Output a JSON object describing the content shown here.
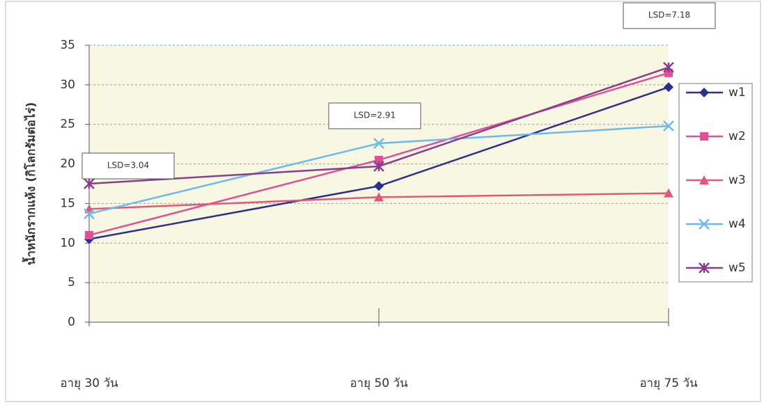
{
  "chart_data": {
    "type": "line",
    "y_label": "น้ำหนักรากแห้ง (กิโลกรัมต่อไร่)",
    "categories": [
      "อายุ 30 วัน",
      "อายุ 50 วัน",
      "อายุ 75 วัน"
    ],
    "series": [
      {
        "name": "w1",
        "color": "#2b2f8f",
        "marker": "diamond",
        "values": [
          10.5,
          17.2,
          29.7
        ]
      },
      {
        "name": "w2",
        "color": "#e0509a",
        "marker": "square",
        "values": [
          11,
          20.5,
          31.5
        ]
      },
      {
        "name": "w3",
        "color": "#e05a78",
        "marker": "triangle",
        "values": [
          14.3,
          15.8,
          16.3
        ]
      },
      {
        "name": "w4",
        "color": "#6fb8ef",
        "marker": "x",
        "values": [
          13.7,
          22.6,
          24.8
        ]
      },
      {
        "name": "w5",
        "color": "#8a3c8c",
        "marker": "star",
        "values": [
          17.5,
          19.7,
          32.2
        ]
      }
    ],
    "annotations": [
      "LSD=3.04",
      "LSD=2.91",
      "LSD=7.18"
    ],
    "ylim": [
      0,
      35
    ],
    "yticks": [
      0,
      5,
      10,
      15,
      20,
      25,
      30,
      35
    ],
    "grid": true
  }
}
